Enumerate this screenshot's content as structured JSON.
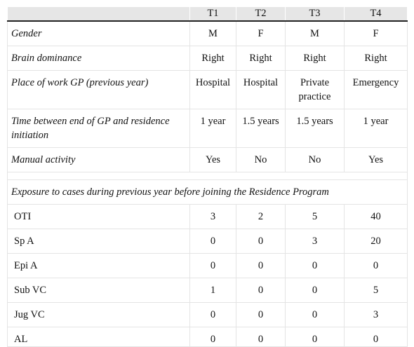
{
  "table": {
    "headers": [
      "",
      "T1",
      "T2",
      "T3",
      "T4"
    ],
    "rows": [
      {
        "label": "Gender",
        "values": [
          "M",
          "F",
          "M",
          "F"
        ]
      },
      {
        "label": "Brain dominance",
        "values": [
          "Right",
          "Right",
          "Right",
          "Right"
        ]
      },
      {
        "label": "Place of work GP (previous year)",
        "values": [
          "Hospital",
          "Hospital",
          "Private practice",
          "Emergency"
        ]
      },
      {
        "label": "Time between end of GP and residence initiation",
        "values": [
          "1 year",
          "1.5 years",
          "1.5 years",
          "1 year"
        ]
      },
      {
        "label": "Manual activity",
        "values": [
          "Yes",
          "No",
          "No",
          "Yes"
        ]
      }
    ],
    "section_title": "Exposure to cases during previous year before joining the Residence Program",
    "exposure_rows": [
      {
        "label": "OTI",
        "values": [
          "3",
          "2",
          "5",
          "40"
        ]
      },
      {
        "label": "Sp A",
        "values": [
          "0",
          "0",
          "3",
          "20"
        ]
      },
      {
        "label": "Epi A",
        "values": [
          "0",
          "0",
          "0",
          "0"
        ]
      },
      {
        "label": "Sub VC",
        "values": [
          "1",
          "0",
          "0",
          "5"
        ]
      },
      {
        "label": "Jug VC",
        "values": [
          "0",
          "0",
          "0",
          "3"
        ]
      },
      {
        "label": "AL",
        "values": [
          "0",
          "0",
          "0",
          "0"
        ]
      }
    ]
  }
}
